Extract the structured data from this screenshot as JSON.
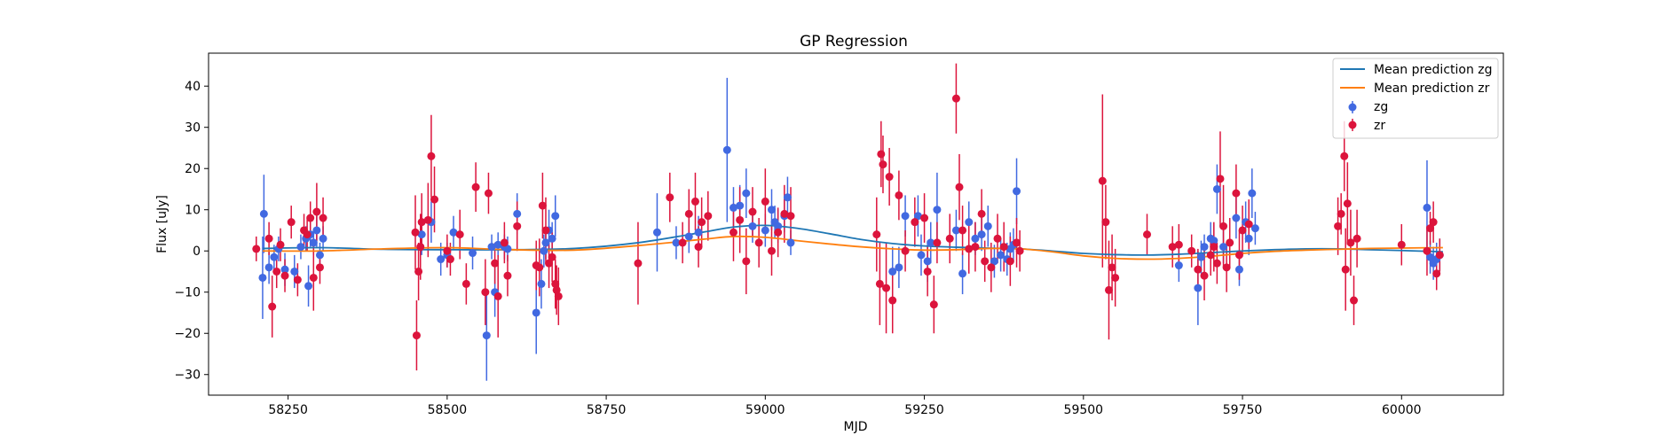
{
  "colors": {
    "zg": "#4169e1",
    "zr": "#dc143c",
    "mean_zg": "#1f77b4",
    "mean_zr": "#ff7f0e"
  },
  "chart_data": {
    "type": "scatter",
    "title": "GP Regression",
    "xlabel": "MJD",
    "ylabel": "Flux [uJy]",
    "xlim": [
      58125,
      60160
    ],
    "ylim": [
      -35,
      48
    ],
    "x_ticks": [
      58250,
      58500,
      58750,
      59000,
      59250,
      59500,
      59750,
      60000
    ],
    "y_ticks": [
      -30,
      -20,
      -10,
      0,
      10,
      20,
      30,
      40
    ],
    "grid": false,
    "legend_position": "top-right",
    "legend": [
      "Mean prediction zg",
      "Mean prediction zr",
      "zg",
      "zr"
    ],
    "lines": [
      {
        "name": "Mean prediction zg",
        "color": "#1f77b4",
        "x": [
          58210,
          58300,
          58400,
          58500,
          58600,
          58700,
          58800,
          58900,
          58950,
          59000,
          59050,
          59100,
          59150,
          59200,
          59250,
          59300,
          59350,
          59400,
          59450,
          59500,
          59550,
          59600,
          59650,
          59700,
          59750,
          59800,
          59850,
          59900,
          59950,
          60000,
          60065
        ],
        "y": [
          0.6,
          0.8,
          0.4,
          0.3,
          0.3,
          0.6,
          2.0,
          4.5,
          5.8,
          6.2,
          5.5,
          4.2,
          2.8,
          1.8,
          1.2,
          0.9,
          0.7,
          0.5,
          0.0,
          -0.6,
          -0.9,
          -1.0,
          -0.8,
          -0.4,
          0.0,
          0.3,
          0.5,
          0.5,
          0.3,
          0.1,
          -0.2
        ]
      },
      {
        "name": "Mean prediction zr",
        "color": "#ff7f0e",
        "x": [
          58210,
          58300,
          58400,
          58500,
          58600,
          58700,
          58800,
          58900,
          58950,
          59000,
          59050,
          59100,
          59150,
          59200,
          59250,
          59300,
          59350,
          59400,
          59450,
          59500,
          59550,
          59600,
          59650,
          59700,
          59750,
          59800,
          59850,
          59900,
          59950,
          60000,
          60065
        ],
        "y": [
          0.0,
          0.0,
          0.5,
          0.8,
          0.3,
          0.2,
          1.3,
          2.8,
          3.5,
          3.3,
          2.5,
          1.7,
          1.0,
          0.5,
          0.2,
          0.3,
          0.6,
          0.5,
          -0.2,
          -1.2,
          -1.8,
          -2.0,
          -1.8,
          -1.3,
          -0.6,
          -0.1,
          0.2,
          0.4,
          0.6,
          0.7,
          0.8
        ]
      }
    ],
    "series": [
      {
        "name": "zg",
        "color": "#4169e1",
        "x": [
          58210,
          58212,
          58220,
          58228,
          58235,
          58245,
          58260,
          58270,
          58278,
          58282,
          58285,
          58290,
          58295,
          58300,
          58305,
          58460,
          58475,
          58490,
          58500,
          58510,
          58540,
          58562,
          58570,
          58575,
          58580,
          58590,
          58595,
          58610,
          58640,
          58648,
          58652,
          58655,
          58660,
          58665,
          58670,
          58830,
          58860,
          58880,
          58895,
          58940,
          58950,
          58960,
          58970,
          58980,
          59000,
          59010,
          59015,
          59020,
          59030,
          59035,
          59040,
          59200,
          59210,
          59220,
          59240,
          59245,
          59255,
          59260,
          59270,
          59300,
          59310,
          59320,
          59330,
          59340,
          59350,
          59360,
          59370,
          59380,
          59385,
          59390,
          59395,
          59650,
          59680,
          59685,
          59690,
          59700,
          59705,
          59710,
          59720,
          59740,
          59745,
          59755,
          59760,
          59765,
          59770,
          60040,
          60045,
          60050,
          60055,
          60060
        ],
        "y": [
          -6.5,
          9.0,
          -4.0,
          -1.5,
          0.5,
          -4.5,
          -5.0,
          1.0,
          3.0,
          -8.5,
          4.0,
          2.0,
          5.0,
          -1.0,
          3.0,
          4.0,
          7.0,
          -2.0,
          -1.0,
          4.5,
          -0.5,
          -20.5,
          1.0,
          -10.0,
          1.5,
          1.0,
          0.5,
          9.0,
          -15.0,
          -8.0,
          0.0,
          2.0,
          5.0,
          3.0,
          8.5,
          4.5,
          2.0,
          3.5,
          4.5,
          24.5,
          10.5,
          11.0,
          14.0,
          6.0,
          5.0,
          10.0,
          7.0,
          6.0,
          8.5,
          13.0,
          2.0,
          -5.0,
          -4.0,
          8.5,
          8.5,
          -1.0,
          -2.5,
          2.0,
          10.0,
          5.0,
          -5.5,
          7.0,
          3.0,
          4.0,
          6.0,
          -2.5,
          -1.0,
          -2.0,
          0.5,
          1.5,
          14.5,
          -3.5,
          -9.0,
          -1.5,
          1.0,
          3.0,
          2.5,
          15.0,
          1.0,
          8.0,
          -4.5,
          7.0,
          3.0,
          14.0,
          5.5,
          10.5,
          -1.5,
          -3.0,
          -2.0,
          -1.0
        ],
        "yerr": [
          10,
          9.5,
          4,
          3,
          3,
          4,
          4,
          3,
          3,
          5,
          3,
          3,
          4,
          3,
          3,
          5,
          5,
          4,
          3,
          4,
          4,
          11,
          3,
          6,
          3,
          3,
          3,
          5,
          10,
          6,
          4,
          4,
          5,
          4,
          5,
          9.5,
          4,
          4,
          4,
          17.5,
          5,
          5,
          6,
          4,
          4,
          5,
          4,
          4,
          4,
          5,
          3,
          6,
          5,
          5,
          5,
          5,
          5,
          5,
          9,
          5,
          5,
          5,
          4,
          4,
          5,
          4,
          4,
          4,
          4,
          4,
          8,
          4,
          9,
          4,
          3,
          4,
          4,
          6,
          4,
          5,
          4,
          5,
          4,
          6,
          4,
          11.5,
          4,
          4,
          4,
          4
        ]
      },
      {
        "name": "zr",
        "color": "#dc143c",
        "x": [
          58200,
          58220,
          58225,
          58232,
          58238,
          58245,
          58255,
          58265,
          58275,
          58280,
          58285,
          58290,
          58295,
          58300,
          58305,
          58450,
          58452,
          58455,
          58458,
          58460,
          58470,
          58475,
          58480,
          58500,
          58505,
          58520,
          58530,
          58545,
          58560,
          58565,
          58575,
          58580,
          58590,
          58595,
          58610,
          58640,
          58645,
          58650,
          58655,
          58660,
          58665,
          58670,
          58672,
          58675,
          58800,
          58850,
          58870,
          58880,
          58890,
          58895,
          58900,
          58910,
          58950,
          58960,
          58970,
          58980,
          58990,
          59000,
          59010,
          59020,
          59030,
          59040,
          59175,
          59180,
          59182,
          59185,
          59190,
          59195,
          59200,
          59210,
          59220,
          59235,
          59250,
          59255,
          59265,
          59270,
          59290,
          59300,
          59305,
          59310,
          59320,
          59330,
          59340,
          59345,
          59355,
          59365,
          59375,
          59385,
          59395,
          59400,
          59530,
          59535,
          59540,
          59545,
          59550,
          59600,
          59640,
          59650,
          59670,
          59680,
          59690,
          59700,
          59705,
          59710,
          59715,
          59720,
          59725,
          59730,
          59740,
          59745,
          59750,
          59760,
          59900,
          59905,
          59910,
          59912,
          59915,
          59920,
          59925,
          59930,
          60000,
          60040,
          60045,
          60050,
          60055,
          60060
        ],
        "y": [
          0.5,
          3.0,
          -13.5,
          -5.0,
          1.5,
          -6.0,
          7.0,
          -7.0,
          5.0,
          4.0,
          8.0,
          -6.5,
          9.5,
          -4.0,
          8.0,
          4.5,
          -20.5,
          -5.0,
          1.0,
          7.0,
          7.5,
          23.0,
          12.5,
          0.0,
          -2.0,
          4.0,
          -8.0,
          15.5,
          -10.0,
          14.0,
          -3.0,
          -11.0,
          2.0,
          -6.0,
          6.0,
          -3.5,
          -4.0,
          11.0,
          5.0,
          -3.0,
          -1.5,
          -8.0,
          -9.5,
          -11.0,
          -3.0,
          13.0,
          2.0,
          9.0,
          12.0,
          1.0,
          7.0,
          8.5,
          4.5,
          7.5,
          -2.5,
          9.5,
          2.0,
          12.0,
          0.0,
          4.5,
          9.0,
          8.5,
          4.0,
          -8.0,
          23.5,
          21.0,
          -9.0,
          18.0,
          -12.0,
          13.5,
          0.0,
          7.0,
          8.0,
          -5.0,
          -13.0,
          2.0,
          3.0,
          37.0,
          15.5,
          5.0,
          0.5,
          1.0,
          9.0,
          -2.5,
          -4.0,
          3.0,
          1.0,
          -2.5,
          2.0,
          0.0,
          17.0,
          7.0,
          -9.5,
          -4.0,
          -6.5,
          4.0,
          1.0,
          1.5,
          0.0,
          -4.5,
          -6.0,
          -1.0,
          1.0,
          -3.0,
          17.5,
          6.0,
          -4.0,
          2.0,
          14.0,
          -1.0,
          5.0,
          6.5,
          6.0,
          9.0,
          23.0,
          -4.5,
          11.5,
          2.0,
          -12.0,
          3.0,
          1.5,
          0.0,
          5.5,
          7.0,
          -5.5,
          -1.0
        ],
        "yerr": [
          3,
          4,
          7.5,
          4,
          4,
          4,
          4,
          4,
          4,
          4,
          4,
          8,
          7,
          4,
          5,
          9,
          8.5,
          7,
          8,
          7,
          9,
          10,
          8,
          4,
          4,
          6,
          5,
          6,
          8,
          5,
          5,
          10,
          5,
          5,
          6,
          6,
          7,
          8,
          8,
          6,
          6,
          6,
          6,
          7,
          10,
          6,
          5,
          6,
          7,
          5,
          6,
          6,
          7,
          8,
          8,
          6,
          6,
          8,
          6,
          6,
          7,
          7,
          9,
          10,
          8,
          7,
          11,
          7,
          8,
          6,
          5,
          6,
          6,
          6,
          7,
          5,
          6,
          8.5,
          8,
          6,
          6,
          6,
          6,
          5,
          6,
          6,
          6,
          6,
          6,
          5,
          21,
          9,
          12,
          8,
          7,
          5,
          5,
          5,
          4,
          5,
          6,
          5,
          6,
          5,
          11.5,
          10,
          6,
          6,
          7,
          6,
          6,
          6,
          7,
          5,
          8.5,
          10,
          10,
          8,
          6,
          7,
          5,
          6,
          4,
          5,
          4,
          4
        ]
      }
    ]
  }
}
